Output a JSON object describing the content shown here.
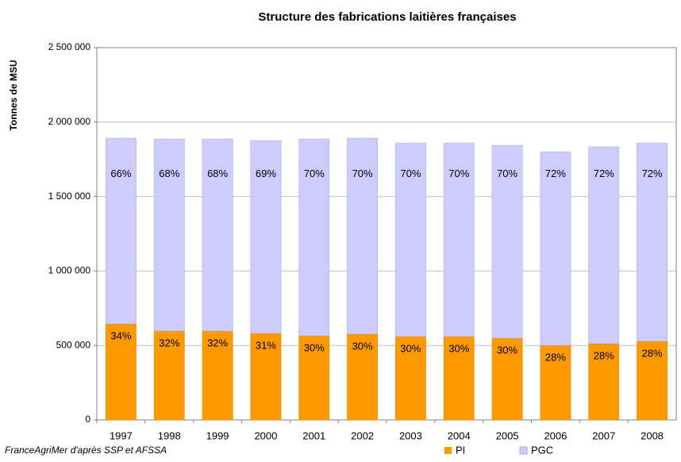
{
  "chart_data": {
    "type": "stacked_bar",
    "title": "Structure des fabrications laitières françaises",
    "y_label": "Tonnes de MSU",
    "source": "FranceAgriMer d'après SSP et AFSSA",
    "categories": [
      "1997",
      "1998",
      "1999",
      "2000",
      "2001",
      "2002",
      "2003",
      "2004",
      "2005",
      "2006",
      "2007",
      "2008"
    ],
    "series": [
      {
        "name": "PI",
        "color": "#ff9900",
        "values": [
          645000,
          597000,
          597000,
          581000,
          565000,
          576000,
          560000,
          560000,
          549000,
          501000,
          512000,
          528000
        ],
        "labels": [
          "34%",
          "32%",
          "32%",
          "31%",
          "30%",
          "30%",
          "30%",
          "30%",
          "30%",
          "28%",
          "28%",
          "28%"
        ]
      },
      {
        "name": "PGC",
        "color": "#ccccff",
        "values": [
          1247000,
          1290000,
          1290000,
          1295000,
          1322000,
          1316000,
          1300000,
          1300000,
          1295000,
          1300000,
          1322000,
          1332000
        ],
        "labels": [
          "66%",
          "68%",
          "68%",
          "69%",
          "70%",
          "70%",
          "70%",
          "70%",
          "70%",
          "72%",
          "72%",
          "72%"
        ]
      }
    ],
    "ylim": [
      0,
      2500000
    ],
    "yticks": [
      0,
      {
        "value": 500000,
        "label": "500 000"
      },
      {
        "value": 1000000,
        "label": "1 000 000"
      },
      {
        "value": 1500000,
        "label": "1 500 000"
      },
      {
        "value": 2000000,
        "label": "2 000 000"
      },
      {
        "value": 2500000,
        "label": "2 500 000"
      }
    ],
    "grid": true,
    "legend": "bottom"
  }
}
